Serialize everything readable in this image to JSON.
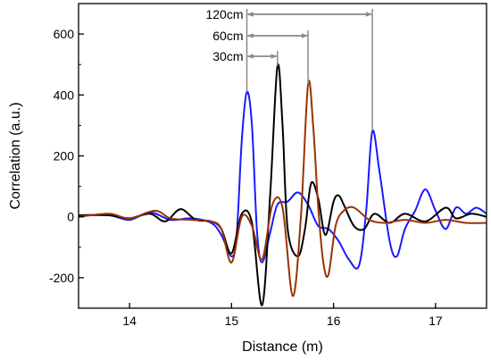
{
  "chart_data": {
    "type": "line",
    "title": "",
    "xlabel": "Distance (m)",
    "ylabel": "Correlation (a.u.)",
    "xlim": [
      13.5,
      17.5
    ],
    "ylim": [
      -300,
      700
    ],
    "x_ticks": [
      14,
      15,
      16,
      17
    ],
    "y_ticks": [
      -200,
      0,
      200,
      400,
      600
    ],
    "x_tick_labels": [
      "14",
      "15",
      "16",
      "17"
    ],
    "y_tick_labels": [
      "-200",
      "0",
      "200",
      "400",
      "600"
    ],
    "grid": false,
    "legend": null,
    "series": [
      {
        "color": "#1a1aff",
        "points": [
          [
            13.5,
            5
          ],
          [
            13.8,
            5
          ],
          [
            14.0,
            -10
          ],
          [
            14.2,
            15
          ],
          [
            14.4,
            -10
          ],
          [
            14.6,
            -5
          ],
          [
            14.8,
            -20
          ],
          [
            14.9,
            -60
          ],
          [
            15.0,
            -130
          ],
          [
            15.05,
            -60
          ],
          [
            15.1,
            250
          ],
          [
            15.15,
            410
          ],
          [
            15.2,
            300
          ],
          [
            15.25,
            -50
          ],
          [
            15.3,
            -150
          ],
          [
            15.38,
            -50
          ],
          [
            15.45,
            40
          ],
          [
            15.55,
            50
          ],
          [
            15.65,
            80
          ],
          [
            15.75,
            40
          ],
          [
            15.85,
            -30
          ],
          [
            15.95,
            -40
          ],
          [
            16.05,
            -80
          ],
          [
            16.15,
            -140
          ],
          [
            16.25,
            -160
          ],
          [
            16.32,
            20
          ],
          [
            16.38,
            280
          ],
          [
            16.45,
            150
          ],
          [
            16.55,
            -80
          ],
          [
            16.62,
            -130
          ],
          [
            16.7,
            -40
          ],
          [
            16.8,
            20
          ],
          [
            16.9,
            90
          ],
          [
            17.0,
            20
          ],
          [
            17.1,
            -40
          ],
          [
            17.2,
            30
          ],
          [
            17.3,
            10
          ],
          [
            17.4,
            30
          ],
          [
            17.5,
            10
          ]
        ]
      },
      {
        "color": "#000000",
        "points": [
          [
            13.5,
            5
          ],
          [
            13.8,
            5
          ],
          [
            14.0,
            -5
          ],
          [
            14.2,
            10
          ],
          [
            14.35,
            -15
          ],
          [
            14.5,
            25
          ],
          [
            14.65,
            -10
          ],
          [
            14.8,
            -15
          ],
          [
            14.9,
            -40
          ],
          [
            15.0,
            -120
          ],
          [
            15.1,
            10
          ],
          [
            15.2,
            -20
          ],
          [
            15.3,
            -290
          ],
          [
            15.38,
            80
          ],
          [
            15.45,
            495
          ],
          [
            15.5,
            300
          ],
          [
            15.55,
            -40
          ],
          [
            15.65,
            -130
          ],
          [
            15.72,
            -40
          ],
          [
            15.78,
            110
          ],
          [
            15.85,
            60
          ],
          [
            15.92,
            -60
          ],
          [
            16.0,
            50
          ],
          [
            16.05,
            70
          ],
          [
            16.1,
            40
          ],
          [
            16.2,
            -30
          ],
          [
            16.3,
            -40
          ],
          [
            16.4,
            10
          ],
          [
            16.55,
            -20
          ],
          [
            16.7,
            10
          ],
          [
            16.9,
            -15
          ],
          [
            17.1,
            30
          ],
          [
            17.2,
            -5
          ],
          [
            17.35,
            10
          ],
          [
            17.5,
            0
          ]
        ]
      },
      {
        "color": "#993300",
        "points": [
          [
            13.5,
            0
          ],
          [
            13.8,
            10
          ],
          [
            14.0,
            -5
          ],
          [
            14.25,
            20
          ],
          [
            14.4,
            -5
          ],
          [
            14.6,
            -10
          ],
          [
            14.8,
            -15
          ],
          [
            14.9,
            -40
          ],
          [
            15.0,
            -150
          ],
          [
            15.1,
            0
          ],
          [
            15.2,
            -30
          ],
          [
            15.3,
            -140
          ],
          [
            15.4,
            40
          ],
          [
            15.5,
            30
          ],
          [
            15.6,
            -260
          ],
          [
            15.68,
            0
          ],
          [
            15.75,
            435
          ],
          [
            15.8,
            300
          ],
          [
            15.85,
            30
          ],
          [
            15.9,
            -150
          ],
          [
            15.95,
            -190
          ],
          [
            16.02,
            -30
          ],
          [
            16.1,
            20
          ],
          [
            16.2,
            30
          ],
          [
            16.35,
            -10
          ],
          [
            16.5,
            -20
          ],
          [
            16.7,
            -10
          ],
          [
            16.9,
            -20
          ],
          [
            17.1,
            -10
          ],
          [
            17.3,
            -20
          ],
          [
            17.5,
            -20
          ]
        ]
      }
    ],
    "annotations": [
      {
        "label": "120cm",
        "x_start": 15.15,
        "x_end": 16.38
      },
      {
        "label": "60cm",
        "x_start": 15.15,
        "x_end": 15.75
      },
      {
        "label": "30cm",
        "x_start": 15.15,
        "x_end": 15.45
      }
    ]
  }
}
